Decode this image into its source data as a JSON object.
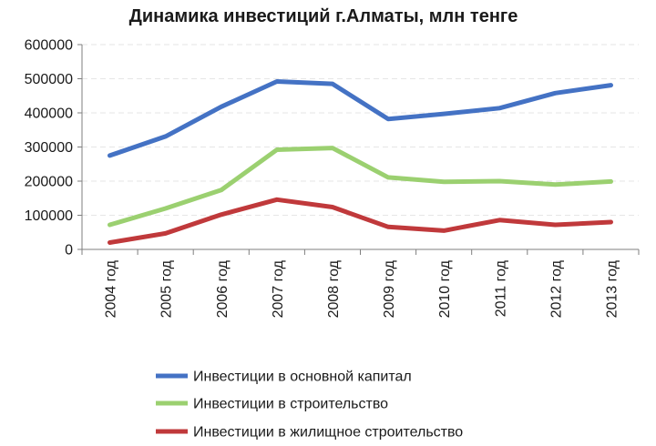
{
  "chart_data": {
    "type": "line",
    "title": "Динамика инвестиций  г.Алматы, млн тенге",
    "categories": [
      "2004 год",
      "2005 год",
      "2006 год",
      "2007 год",
      "2008 год",
      "2009 год",
      "2010 год",
      "2011 год",
      "2012 год",
      "2013 год"
    ],
    "ylim": [
      0,
      600000
    ],
    "yticks": [
      "0",
      "100000",
      "200000",
      "300000",
      "400000",
      "500000",
      "600000"
    ],
    "ytick_values": [
      0,
      100000,
      200000,
      300000,
      400000,
      500000,
      600000
    ],
    "grid": true,
    "legend_position": "bottom",
    "series": [
      {
        "name": "Инвестиции в основной капитал",
        "color": "#4472C4",
        "values": [
          275000,
          331000,
          418000,
          492000,
          485000,
          382000,
          397000,
          414000,
          458000,
          481000
        ]
      },
      {
        "name": "Инвестиции в строительство",
        "color": "#9BD070",
        "values": [
          72000,
          120000,
          174000,
          292000,
          297000,
          211000,
          198000,
          200000,
          190000,
          199000
        ]
      },
      {
        "name": "Инвестиции в жилищное строительство",
        "color": "#C0393B",
        "values": [
          20000,
          47000,
          102000,
          146000,
          124000,
          66000,
          55000,
          86000,
          72000,
          80000
        ]
      }
    ]
  }
}
